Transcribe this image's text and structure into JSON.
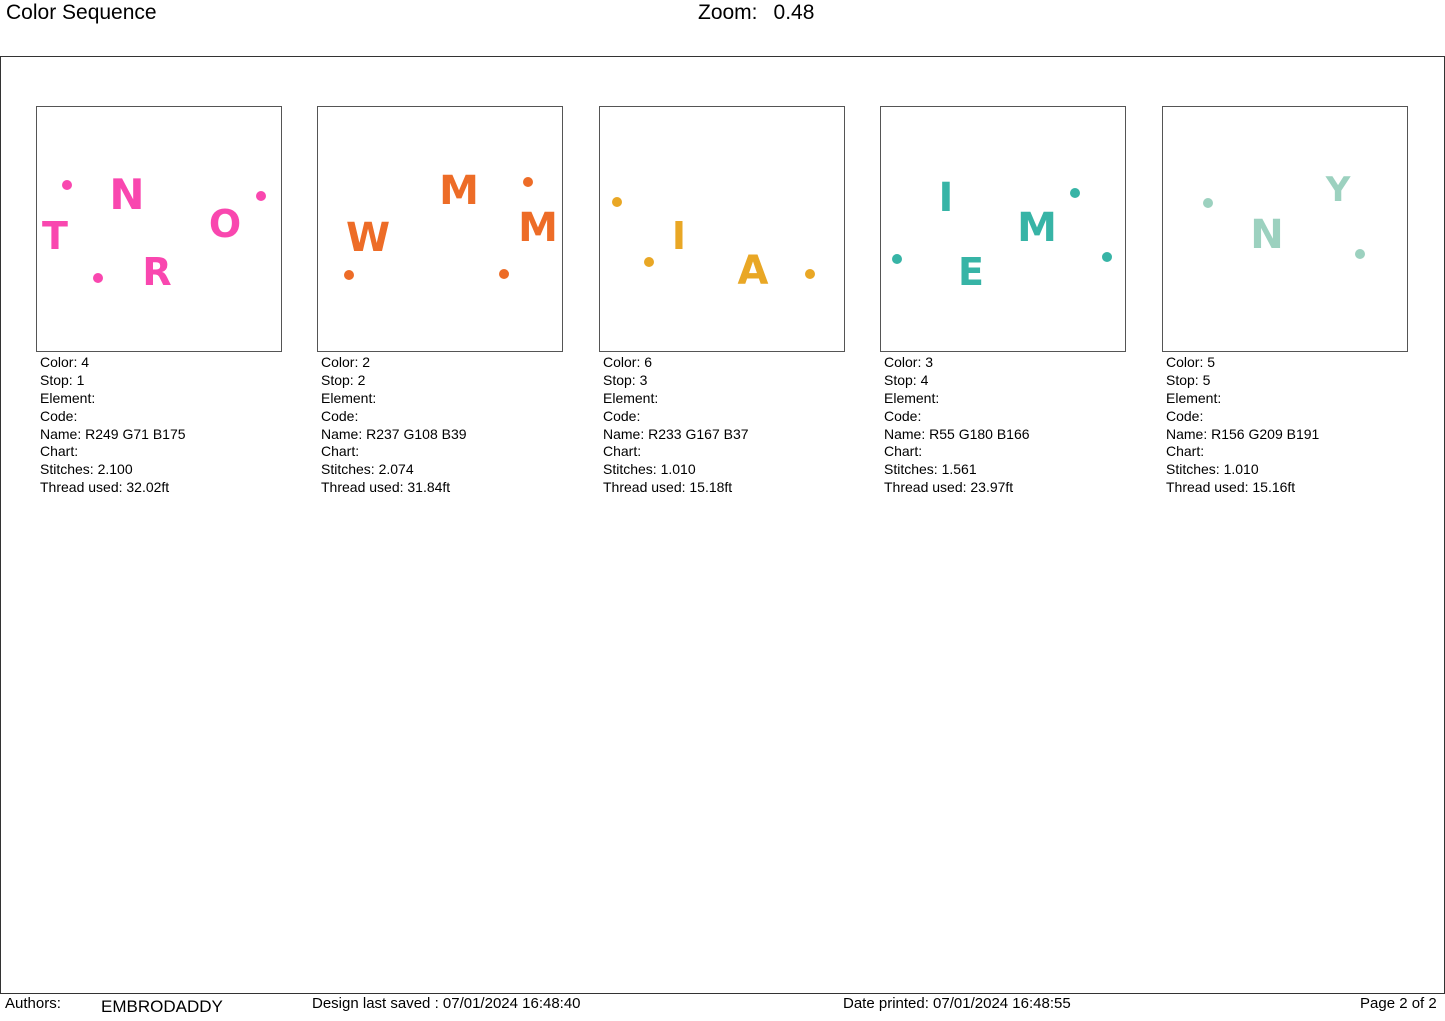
{
  "header": {
    "title": "Color Sequence",
    "zoom_label": "Zoom:",
    "zoom_value": "0.48"
  },
  "swatches": [
    {
      "color_hex": "#F947AF",
      "letters": [
        "T",
        "N",
        "R",
        "O"
      ],
      "color": "Color: 4",
      "stop": "Stop: 1",
      "element": "Element:",
      "code": "Code:",
      "name": "Name: R249 G71 B175",
      "chart": "Chart:",
      "stitches": "Stitches: 2.100",
      "thread": "Thread used: 32.02ft"
    },
    {
      "color_hex": "#ED6C27",
      "letters": [
        "W",
        "M",
        "M"
      ],
      "color": "Color: 2",
      "stop": "Stop: 2",
      "element": "Element:",
      "code": "Code:",
      "name": "Name: R237 G108 B39",
      "chart": "Chart:",
      "stitches": "Stitches: 2.074",
      "thread": "Thread used: 31.84ft"
    },
    {
      "color_hex": "#E9A725",
      "letters": [
        "I",
        "A"
      ],
      "color": "Color: 6",
      "stop": "Stop: 3",
      "element": "Element:",
      "code": "Code:",
      "name": "Name: R233 G167 B37",
      "chart": "Chart:",
      "stitches": "Stitches: 1.010",
      "thread": "Thread used: 15.18ft"
    },
    {
      "color_hex": "#37B4A6",
      "letters": [
        "I",
        "M",
        "E"
      ],
      "color": "Color: 3",
      "stop": "Stop: 4",
      "element": "Element:",
      "code": "Code:",
      "name": "Name: R55 G180 B166",
      "chart": "Chart:",
      "stitches": "Stitches: 1.561",
      "thread": "Thread used: 23.97ft"
    },
    {
      "color_hex": "#9CD1BF",
      "letters": [
        "Y",
        "N"
      ],
      "color": "Color: 5",
      "stop": "Stop: 5",
      "element": "Element:",
      "code": "Code:",
      "name": "Name: R156 G209 B191",
      "chart": "Chart:",
      "stitches": "Stitches: 1.010",
      "thread": "Thread used: 15.16ft"
    }
  ],
  "footer": {
    "authors_label": "Authors:",
    "author_name": "EMBRODADDY",
    "design_saved": "Design last saved : 07/01/2024 16:48:40",
    "date_printed": "Date printed: 07/01/2024 16:48:55",
    "page": "Page 2 of 2"
  }
}
